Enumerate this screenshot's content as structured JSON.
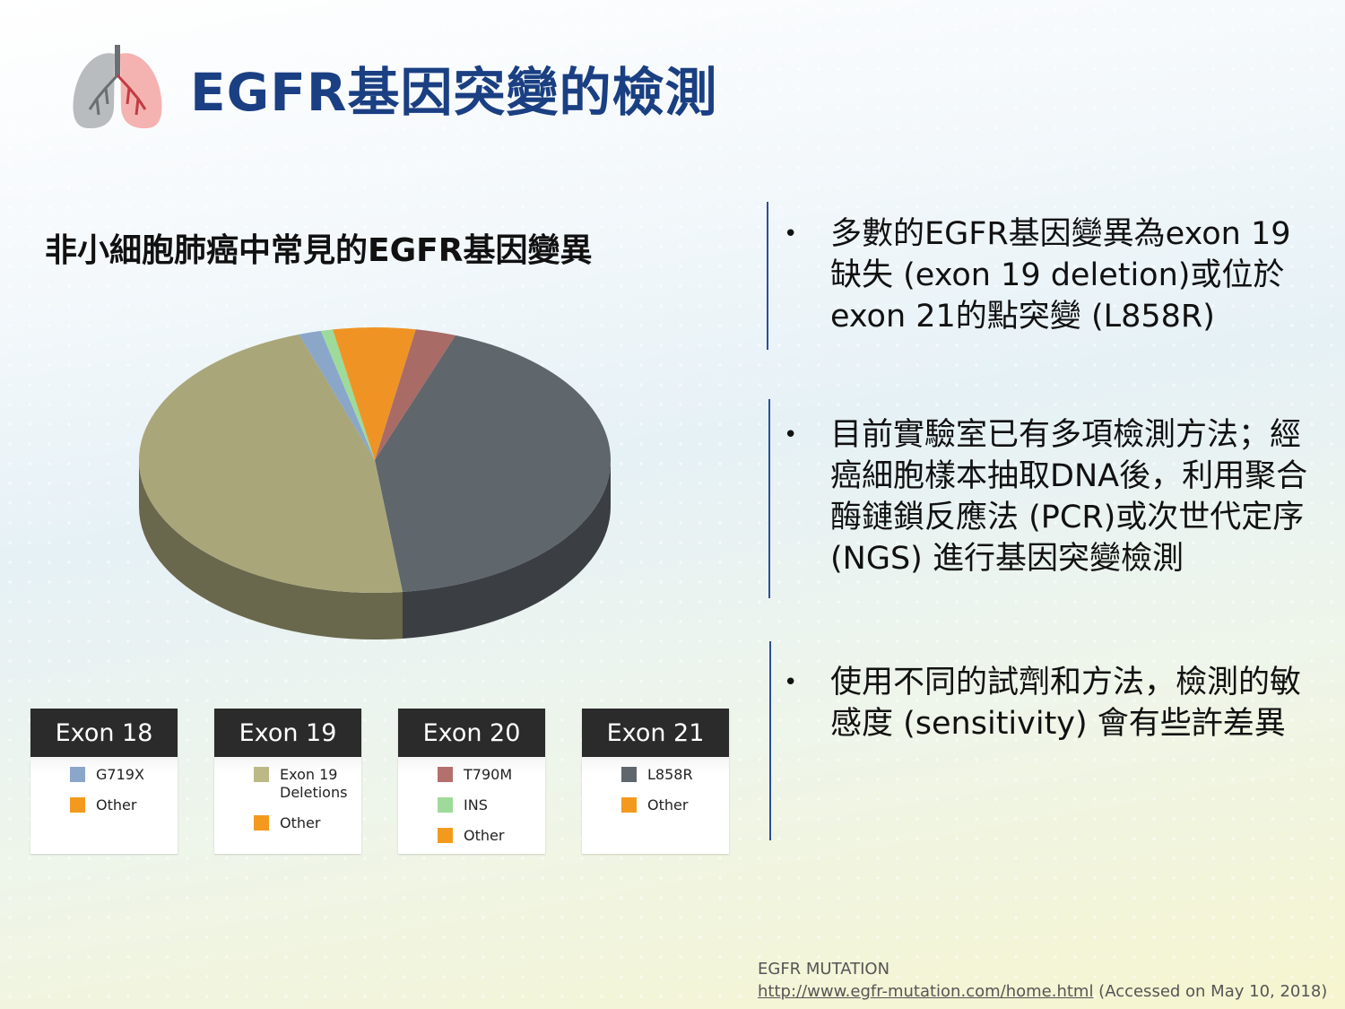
{
  "title": "EGFR基因突變的檢測",
  "subtitle": "非小細胞肺癌中常見的EGFR基因變異",
  "icons": {
    "logo": "lungs-icon"
  },
  "chart_data": {
    "type": "pie",
    "slices": [
      {
        "name": "L858R",
        "value": 41.5,
        "color": "#5f666c"
      },
      {
        "name": "Exon 19 Deletions",
        "value": 45.5,
        "color": "#a9a67a"
      },
      {
        "name": "G719X",
        "value": 1.5,
        "color": "#8aa6c9"
      },
      {
        "name": "INS",
        "value": 0.8,
        "color": "#9edb9a"
      },
      {
        "name": "Other",
        "value": 5.5,
        "color": "#ef9424"
      },
      {
        "name": "T790M",
        "value": 2.7,
        "color": "#a86b66"
      }
    ]
  },
  "legends": [
    {
      "header": "Exon 18",
      "items": [
        {
          "label": "G719X",
          "color": "#8aa6c9"
        },
        {
          "label": "Other",
          "color": "#f39a1e"
        }
      ]
    },
    {
      "header": "Exon 19",
      "items": [
        {
          "label": "Exon 19 Deletions",
          "color": "#bdb987"
        },
        {
          "label": "Other",
          "color": "#f39a1e"
        }
      ]
    },
    {
      "header": "Exon 20",
      "items": [
        {
          "label": "T790M",
          "color": "#b3706d"
        },
        {
          "label": "INS",
          "color": "#9edb9a"
        },
        {
          "label": "Other",
          "color": "#f39a1e"
        }
      ]
    },
    {
      "header": "Exon 21",
      "items": [
        {
          "label": "L858R",
          "color": "#5f666c"
        },
        {
          "label": "Other",
          "color": "#f39a1e"
        }
      ]
    }
  ],
  "bullets": [
    "多數的EGFR基因變異為exon 19缺失 (exon 19 deletion)或位於exon 21的點突變 (L858R)",
    "目前實驗室已有多項檢測方法；經癌細胞樣本抽取DNA後，利用聚合酶鏈鎖反應法 (PCR)或次世代定序 (NGS) 進行基因突變檢測",
    "使用不同的試劑和方法，檢測的敏感度 (sensitivity) 會有些許差異"
  ],
  "bullet_symbol": "•",
  "source": {
    "line1": "EGFR MUTATION",
    "url": "http://www.egfr-mutation.com/home.html",
    "accessed": " (Accessed on May 10, 2018)"
  }
}
